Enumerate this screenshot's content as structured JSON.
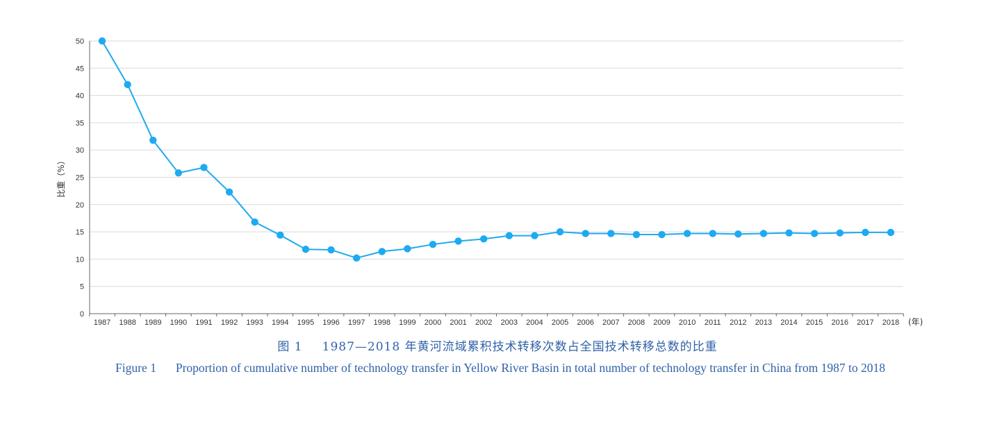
{
  "chart_data": {
    "type": "line",
    "ylabel": "比重（%）",
    "xlabel": "(年)",
    "ylim": [
      0,
      50
    ],
    "yticks": [
      0,
      5,
      10,
      15,
      20,
      25,
      30,
      35,
      40,
      45,
      50
    ],
    "grid": "horizontal",
    "line_color": "#1eaaf1",
    "categories": [
      "1987",
      "1988",
      "1989",
      "1990",
      "1991",
      "1992",
      "1993",
      "1994",
      "1995",
      "1996",
      "1997",
      "1998",
      "1999",
      "2000",
      "2001",
      "2002",
      "2003",
      "2004",
      "2005",
      "2006",
      "2007",
      "2008",
      "2009",
      "2010",
      "2011",
      "2012",
      "2013",
      "2014",
      "2015",
      "2016",
      "2017",
      "2018"
    ],
    "values": [
      50,
      42,
      31.8,
      25.8,
      26.8,
      22.3,
      16.8,
      14.4,
      11.8,
      11.7,
      10.2,
      11.4,
      11.9,
      12.7,
      13.3,
      13.7,
      14.3,
      14.3,
      15.0,
      14.7,
      14.7,
      14.5,
      14.5,
      14.7,
      14.7,
      14.6,
      14.7,
      14.8,
      14.7,
      14.8,
      14.9,
      14.9
    ]
  },
  "caption": {
    "cn_num": "图 1",
    "cn_text": "1987—2018 年黄河流域累积技术转移次数占全国技术转移总数的比重",
    "en_num": "Figure 1",
    "en_text": "Proportion of cumulative number of technology transfer in Yellow River Basin in total number of technology transfer in China from 1987 to 2018"
  }
}
